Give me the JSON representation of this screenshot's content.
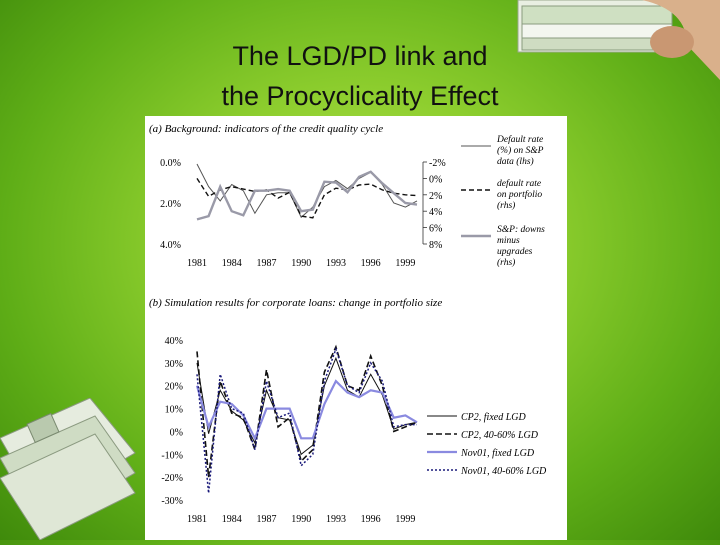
{
  "slide": {
    "title_line1": "The LGD/PD link and",
    "title_line2": "the Procyclicality Effect"
  },
  "chart_data": [
    {
      "type": "line",
      "title": "(a) Background: indicators of the credit quality cycle",
      "x": [
        1981,
        1982,
        1983,
        1984,
        1985,
        1986,
        1987,
        1988,
        1989,
        1990,
        1991,
        1992,
        1993,
        1994,
        1995,
        1996,
        1997,
        1998,
        1999,
        2000
      ],
      "x_ticks": [
        "1981",
        "1984",
        "1987",
        "1990",
        "1993",
        "1996",
        "1999"
      ],
      "y_left_ticks": [
        "0.0%",
        "2.0%",
        "4.0%"
      ],
      "y_left_lim": [
        0.0,
        4.0
      ],
      "y_right_ticks": [
        "-2%",
        "0%",
        "2%",
        "4%",
        "6%",
        "8%"
      ],
      "y_right_lim": [
        -2,
        8
      ],
      "series": [
        {
          "name": "Default rate (%) on S&P data (lhs)",
          "axis": "left",
          "style": "solid-thin",
          "values": [
            0.1,
            1.2,
            1.9,
            1.1,
            1.4,
            2.5,
            1.6,
            1.5,
            1.5,
            2.7,
            2.2,
            1.2,
            0.9,
            1.3,
            0.8,
            0.5,
            1.1,
            2.0,
            2.2,
            1.9
          ]
        },
        {
          "name": "default rate on portfolio (rhs)",
          "axis": "right",
          "style": "dashed",
          "values": [
            0.0,
            2.2,
            1.4,
            1.0,
            1.3,
            1.6,
            1.4,
            2.4,
            1.7,
            4.6,
            4.8,
            2.0,
            1.2,
            1.4,
            0.8,
            0.7,
            1.4,
            1.8,
            2.0,
            2.1
          ]
        },
        {
          "name": "S&P: downs minus upgrades (rhs)",
          "axis": "right",
          "style": "solid-thick",
          "values": [
            5.0,
            4.6,
            1.0,
            4.0,
            4.5,
            1.5,
            1.5,
            1.3,
            1.5,
            4.0,
            3.8,
            0.4,
            0.5,
            1.7,
            -0.2,
            -0.8,
            0.6,
            1.8,
            3.0,
            3.2
          ]
        }
      ]
    },
    {
      "type": "line",
      "title": "(b) Simulation results for corporate loans: change in portfolio size",
      "x": [
        1981,
        1982,
        1983,
        1984,
        1985,
        1986,
        1987,
        1988,
        1989,
        1990,
        1991,
        1992,
        1993,
        1994,
        1995,
        1996,
        1997,
        1998,
        1999,
        2000
      ],
      "x_ticks": [
        "1981",
        "1984",
        "1987",
        "1990",
        "1993",
        "1996",
        "1999"
      ],
      "y_ticks": [
        "40%",
        "30%",
        "20%",
        "10%",
        "0%",
        "-10%",
        "-20%",
        "-30%"
      ],
      "ylim": [
        -30,
        40
      ],
      "series": [
        {
          "name": "CP2, fixed LGD",
          "style": "solid-thin",
          "values": [
            30,
            -1,
            18,
            9,
            5,
            -5,
            18,
            6,
            5,
            -10,
            -6,
            20,
            32,
            18,
            15,
            25,
            16,
            1,
            3,
            4
          ]
        },
        {
          "name": "CP2, 40-60% LGD",
          "style": "dashed",
          "values": [
            35,
            -20,
            22,
            8,
            6,
            -8,
            27,
            2,
            6,
            -13,
            -8,
            26,
            37,
            20,
            18,
            33,
            20,
            0,
            2,
            4
          ]
        },
        {
          "name": "Nov01, fixed LGD",
          "style": "solid-thick",
          "values": [
            20,
            2,
            13,
            12,
            7,
            -3,
            10,
            10,
            10,
            -3,
            -3,
            12,
            22,
            17,
            15,
            18,
            17,
            6,
            7,
            4
          ]
        },
        {
          "name": "Nov01, 40-60% LGD",
          "style": "dotted",
          "values": [
            25,
            -27,
            25,
            10,
            8,
            -8,
            22,
            6,
            8,
            -15,
            -10,
            22,
            36,
            20,
            17,
            30,
            22,
            2,
            3,
            3
          ]
        }
      ]
    }
  ]
}
